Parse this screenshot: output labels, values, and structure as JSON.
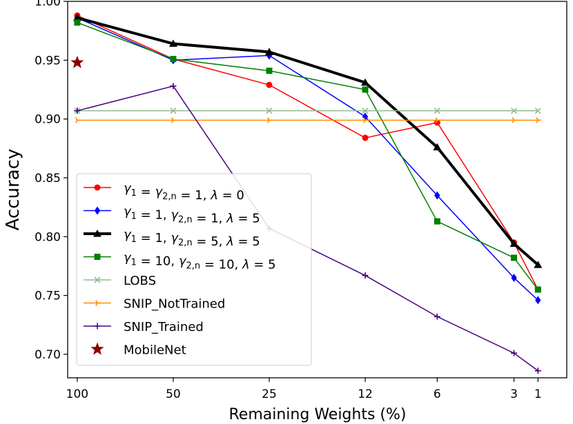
{
  "chart_data": {
    "type": "line",
    "xlabel": "Remaining Weights (%)",
    "ylabel": "Accuracy",
    "x_ticks": [
      {
        "pos": 0,
        "label": "100"
      },
      {
        "pos": 1,
        "label": "50"
      },
      {
        "pos": 2,
        "label": "25"
      },
      {
        "pos": 3,
        "label": "12"
      },
      {
        "pos": 3.75,
        "label": "6"
      },
      {
        "pos": 4.55,
        "label": "3"
      },
      {
        "pos": 4.8,
        "label": "1"
      }
    ],
    "x_range": [
      -0.1,
      5.1
    ],
    "y_range": [
      0.68,
      1.0
    ],
    "y_ticks": [
      0.7,
      0.75,
      0.8,
      0.85,
      0.9,
      0.95,
      1.0
    ],
    "y_tick_labels": [
      "0.70",
      "0.75",
      "0.80",
      "0.85",
      "0.90",
      "0.95",
      "1.00"
    ],
    "legend_position": "lower-left",
    "series": [
      {
        "name": "γ1 = γ2,n = 1, λ = 0",
        "legend_parts": [
          [
            "γ",
            "0"
          ],
          [
            "1",
            "sub"
          ],
          [
            " = ",
            "0"
          ],
          [
            "γ",
            "0"
          ],
          [
            "2,n",
            "sub"
          ],
          [
            " = 1, ",
            "0"
          ],
          [
            "λ",
            "0"
          ],
          [
            " = 0",
            "0"
          ]
        ],
        "color": "#ff0000",
        "marker": "circle",
        "line_width": 1.5,
        "x": [
          0,
          1,
          2,
          3,
          3.75,
          4.55,
          4.8
        ],
        "y": [
          0.988,
          0.951,
          0.929,
          0.884,
          0.897,
          0.795,
          0.755
        ]
      },
      {
        "name": "γ1 = 1, γ2,n = 1, λ = 5",
        "legend_parts": [
          [
            "γ",
            "0"
          ],
          [
            "1",
            "sub"
          ],
          [
            " = 1, ",
            "0"
          ],
          [
            "γ",
            "0"
          ],
          [
            "2,n",
            "sub"
          ],
          [
            " = 1, ",
            "0"
          ],
          [
            "λ",
            "0"
          ],
          [
            " = 5",
            "0"
          ]
        ],
        "color": "#0000ff",
        "marker": "diamond",
        "line_width": 1.5,
        "x": [
          0,
          1,
          2,
          3,
          3.75,
          4.55,
          4.8
        ],
        "y": [
          0.986,
          0.95,
          0.954,
          0.902,
          0.835,
          0.765,
          0.746
        ]
      },
      {
        "name": "γ1 = 1, γ2,n = 5, λ = 5",
        "legend_parts": [
          [
            "γ",
            "0"
          ],
          [
            "1",
            "sub"
          ],
          [
            " = 1, ",
            "0"
          ],
          [
            "γ",
            "0"
          ],
          [
            "2,n",
            "sub"
          ],
          [
            " = 5, ",
            "0"
          ],
          [
            "λ",
            "0"
          ],
          [
            " = 5",
            "0"
          ]
        ],
        "color": "#000000",
        "marker": "triangle",
        "line_width": 4,
        "x": [
          0,
          1,
          2,
          3,
          3.75,
          4.55,
          4.8
        ],
        "y": [
          0.986,
          0.964,
          0.957,
          0.931,
          0.876,
          0.794,
          0.776
        ]
      },
      {
        "name": "γ1 = 10, γ2,n = 10, λ = 5",
        "legend_parts": [
          [
            "γ",
            "0"
          ],
          [
            "1",
            "sub"
          ],
          [
            " = 10, ",
            "0"
          ],
          [
            "γ",
            "0"
          ],
          [
            "2,n",
            "sub"
          ],
          [
            " = 10, ",
            "0"
          ],
          [
            "λ",
            "0"
          ],
          [
            " = 5",
            "0"
          ]
        ],
        "color": "#008000",
        "marker": "square",
        "line_width": 1.5,
        "x": [
          0,
          1,
          2,
          3,
          3.75,
          4.55,
          4.8
        ],
        "y": [
          0.982,
          0.951,
          0.941,
          0.925,
          0.813,
          0.782,
          0.755
        ]
      },
      {
        "name": "LOBS",
        "legend_parts": [
          [
            "LOBS",
            "0"
          ]
        ],
        "color": "#8fbc8f",
        "marker": "x",
        "line_width": 1.5,
        "x": [
          0,
          1,
          2,
          3,
          3.75,
          4.55,
          4.8
        ],
        "y": [
          0.907,
          0.907,
          0.907,
          0.907,
          0.907,
          0.907,
          0.907
        ]
      },
      {
        "name": "SNIP_NotTrained",
        "legend_parts": [
          [
            "SNIP_NotTrained",
            "0"
          ]
        ],
        "color": "#ff8c00",
        "marker": "tri",
        "line_width": 1.5,
        "x": [
          0,
          1,
          2,
          3,
          3.75,
          4.55,
          4.8
        ],
        "y": [
          0.899,
          0.899,
          0.899,
          0.899,
          0.899,
          0.899,
          0.899
        ]
      },
      {
        "name": "SNIP_Trained",
        "legend_parts": [
          [
            "SNIP_Trained",
            "0"
          ]
        ],
        "color": "#4b0082",
        "marker": "plus",
        "line_width": 1.5,
        "x": [
          0,
          1,
          2,
          3,
          3.75,
          4.55,
          4.8
        ],
        "y": [
          0.907,
          0.928,
          0.807,
          0.767,
          0.732,
          0.701,
          0.686
        ]
      },
      {
        "name": "MobileNet",
        "legend_parts": [
          [
            "MobileNet",
            "0"
          ]
        ],
        "color": "#8b0000",
        "marker": "star",
        "line_width": 0,
        "x": [
          0
        ],
        "y": [
          0.948
        ]
      }
    ]
  }
}
